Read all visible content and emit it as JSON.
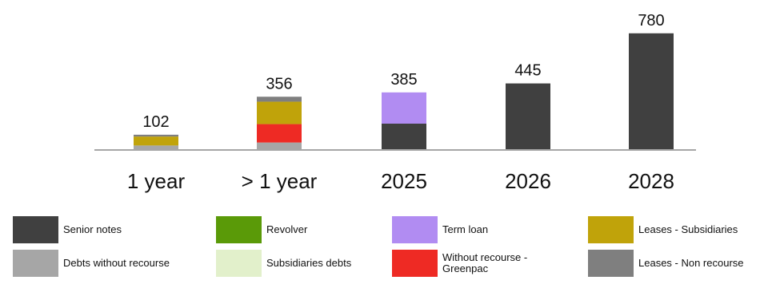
{
  "chart_data": {
    "type": "bar",
    "stacked": true,
    "categories": [
      "1 year",
      "> 1 year",
      "2025",
      "2026",
      "2028"
    ],
    "totals": [
      102,
      356,
      385,
      445,
      780
    ],
    "ylim": [
      0,
      800
    ],
    "grid": false,
    "legend_placement": "bottom",
    "series": [
      {
        "name": "Senior notes",
        "color": "#404040",
        "values": [
          0,
          0,
          176,
          445,
          780
        ]
      },
      {
        "name": "Debts without recourse",
        "color": "#a6a6a6",
        "values": [
          30,
          50,
          0,
          0,
          0
        ]
      },
      {
        "name": "Revolver",
        "color": "#5a9a08",
        "values": [
          0,
          0,
          0,
          0,
          0
        ]
      },
      {
        "name": "Subsidiaries debts",
        "color": "#e2f0cb",
        "values": [
          0,
          0,
          0,
          0,
          0
        ]
      },
      {
        "name": "Term loan",
        "color": "#b18cf2",
        "values": [
          0,
          0,
          209,
          0,
          0
        ]
      },
      {
        "name": "Without recourse - Greenpac",
        "color": "#ee2a24",
        "values": [
          0,
          123,
          0,
          0,
          0
        ]
      },
      {
        "name": "Leases - Subsidiaries",
        "color": "#c0a30a",
        "values": [
          60,
          150,
          0,
          0,
          0
        ]
      },
      {
        "name": "Leases - Non recourse",
        "color": "#7f7f7f",
        "values": [
          12,
          33,
          0,
          0,
          0
        ]
      }
    ]
  },
  "legend": [
    {
      "label": "Senior notes",
      "color": "#404040"
    },
    {
      "label": "Revolver",
      "color": "#5a9a08"
    },
    {
      "label": "Term loan",
      "color": "#b18cf2"
    },
    {
      "label": "Leases - Subsidiaries",
      "color": "#c0a30a"
    },
    {
      "label": "Debts without recourse",
      "color": "#a6a6a6"
    },
    {
      "label": "Subsidiaries debts",
      "color": "#e2f0cb"
    },
    {
      "label": "Without recourse -\nGreenpac",
      "color": "#ee2a24"
    },
    {
      "label": "Leases - Non recourse",
      "color": "#7f7f7f"
    }
  ]
}
